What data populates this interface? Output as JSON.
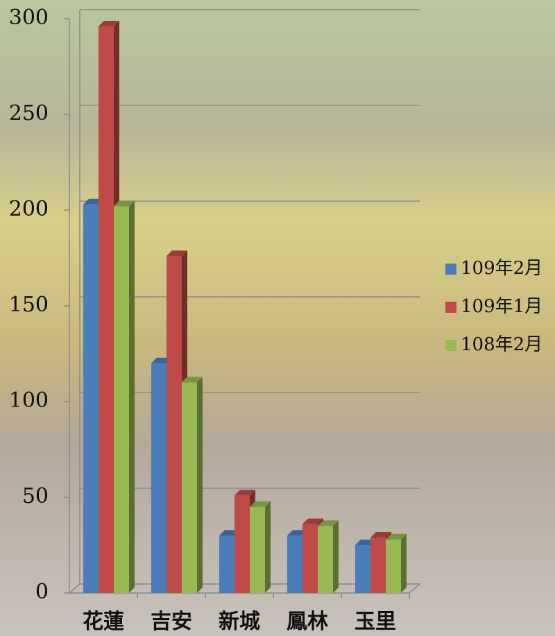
{
  "chart_data": {
    "type": "bar3d",
    "categories": [
      "花蓮",
      "吉安",
      "新城",
      "鳳林",
      "玉里"
    ],
    "series": [
      {
        "name": "109年2月",
        "color": "#4a7ebb",
        "values": [
          203,
          120,
          30,
          30,
          25
        ]
      },
      {
        "name": "109年1月",
        "color": "#be4b48",
        "values": [
          296,
          176,
          51,
          36,
          29
        ]
      },
      {
        "name": "108年2月",
        "color": "#98b954",
        "values": [
          202,
          110,
          45,
          35,
          28
        ]
      }
    ],
    "ylim": [
      0,
      300
    ],
    "yticks": [
      0,
      50,
      100,
      150,
      200,
      250,
      300
    ],
    "grid": true,
    "legend": "right"
  }
}
